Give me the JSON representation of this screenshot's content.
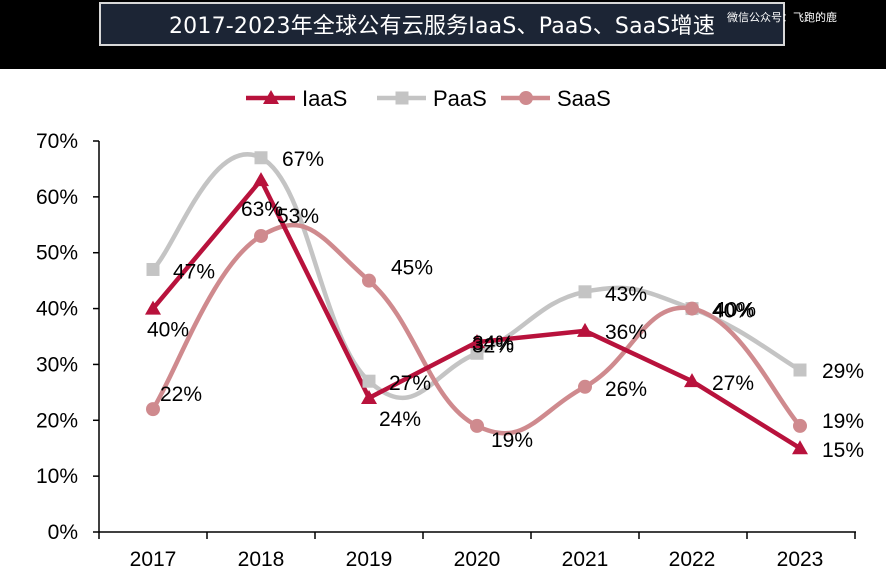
{
  "header": {
    "title": "2017-2023年全球公有云服务IaaS、PaaS、SaaS增速",
    "watermark": "微信公众号：飞跑的鹿"
  },
  "colors": {
    "iaas": "#b8123c",
    "paas": "#c4c4c4",
    "saas": "#cf8a8e",
    "header_bg": "#000000",
    "title_bg": "#1c2535"
  },
  "chart_data": {
    "type": "line",
    "title": "2017-2023年全球公有云服务IaaS、PaaS、SaaS增速",
    "categories": [
      "2017",
      "2018",
      "2019",
      "2020",
      "2021",
      "2022",
      "2023"
    ],
    "series": [
      {
        "name": "IaaS",
        "values": [
          40,
          63,
          24,
          34,
          36,
          27,
          15
        ],
        "labels": [
          "40%",
          "63%",
          "24%",
          "34%",
          "36%",
          "27%",
          "15%"
        ],
        "marker": "triangle",
        "color": "#b8123c"
      },
      {
        "name": "PaaS",
        "values": [
          47,
          67,
          27,
          32,
          43,
          40,
          29
        ],
        "labels": [
          "47%",
          "67%",
          "27%",
          "32%",
          "43%",
          "40%",
          "29%"
        ],
        "marker": "square",
        "color": "#c4c4c4"
      },
      {
        "name": "SaaS",
        "values": [
          22,
          53,
          45,
          19,
          26,
          40,
          19
        ],
        "labels": [
          "22%",
          "53%",
          "45%",
          "19%",
          "26%",
          "40%",
          "19%"
        ],
        "marker": "circle",
        "color": "#cf8a8e"
      }
    ],
    "yticks": [
      "0%",
      "10%",
      "20%",
      "30%",
      "40%",
      "50%",
      "60%",
      "70%"
    ],
    "ylim": [
      0,
      70
    ],
    "xlabel": "",
    "ylabel": "",
    "grid": false,
    "legend_position": "top-center"
  }
}
